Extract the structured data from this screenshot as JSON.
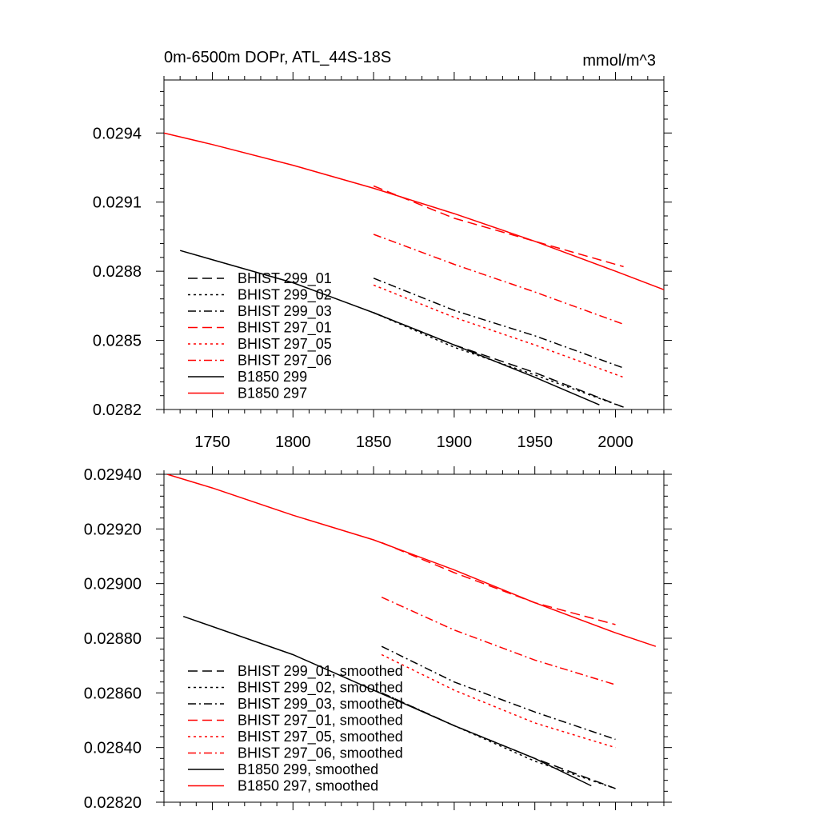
{
  "chart_data": [
    {
      "type": "line",
      "title": "0m-6500m DOPr, ATL_44S-18S",
      "units": "mmol/m^3",
      "xlabel": "",
      "ylabel": "",
      "xlim": [
        1720,
        2030
      ],
      "ylim": [
        0.0282,
        0.02963
      ],
      "xticks": [
        1750,
        1800,
        1850,
        1900,
        1950,
        2000
      ],
      "xtick_labels": [
        "1750",
        "1800",
        "1850",
        "1900",
        "1950",
        "2000"
      ],
      "yticks": [
        0.0282,
        0.0285,
        0.0288,
        0.0291,
        0.0294
      ],
      "ytick_labels": [
        "0.0282",
        "0.0285",
        "0.0288",
        "0.0291",
        "0.0294"
      ],
      "legend_position": "lower-left",
      "series": [
        {
          "name": "BHIST 299_01",
          "color": "#000000",
          "dash": "longdash",
          "x": [
            1850,
            1900,
            1950,
            2005
          ],
          "y": [
            0.02862,
            0.02848,
            0.02836,
            0.02821
          ]
        },
        {
          "name": "BHIST 299_02",
          "color": "#000000",
          "dash": "dot",
          "x": [
            1850,
            1900,
            1950,
            2005
          ],
          "y": [
            0.02862,
            0.02847,
            0.02835,
            0.02821
          ]
        },
        {
          "name": "BHIST 299_03",
          "color": "#000000",
          "dash": "dashdot",
          "x": [
            1850,
            1900,
            1950,
            2005
          ],
          "y": [
            0.02877,
            0.02863,
            0.02852,
            0.02838
          ]
        },
        {
          "name": "BHIST 297_01",
          "color": "#ff0000",
          "dash": "longdash",
          "x": [
            1850,
            1900,
            1950,
            2005
          ],
          "y": [
            0.02917,
            0.02903,
            0.02893,
            0.02882
          ]
        },
        {
          "name": "BHIST 297_05",
          "color": "#ff0000",
          "dash": "dot",
          "x": [
            1850,
            1900,
            1950,
            2005
          ],
          "y": [
            0.02874,
            0.0286,
            0.02848,
            0.02834
          ]
        },
        {
          "name": "BHIST 297_06",
          "color": "#ff0000",
          "dash": "dashdot",
          "x": [
            1850,
            1900,
            1950,
            2005
          ],
          "y": [
            0.02896,
            0.02883,
            0.02871,
            0.02857
          ]
        },
        {
          "name": "B1850 299",
          "color": "#000000",
          "dash": "solid",
          "x": [
            1730,
            1800,
            1850,
            1900,
            1950,
            1990
          ],
          "y": [
            0.02889,
            0.02875,
            0.02862,
            0.02848,
            0.02834,
            0.02822
          ]
        },
        {
          "name": "B1850 297",
          "color": "#ff0000",
          "dash": "solid",
          "x": [
            1720,
            1750,
            1800,
            1850,
            1900,
            1950,
            2000,
            2030
          ],
          "y": [
            0.0294,
            0.02935,
            0.02926,
            0.02916,
            0.02905,
            0.02893,
            0.0288,
            0.02872
          ]
        }
      ]
    },
    {
      "type": "line",
      "title": "",
      "xlabel": "",
      "ylabel": "",
      "xlim": [
        1720,
        2030
      ],
      "ylim": [
        0.0282,
        0.0294
      ],
      "xticks": [
        1750,
        1800,
        1850,
        1900,
        1950,
        2000
      ],
      "yticks": [
        0.0282,
        0.0284,
        0.0286,
        0.0288,
        0.029,
        0.0292,
        0.0294
      ],
      "ytick_labels": [
        "0.02820",
        "0.02840",
        "0.02860",
        "0.02880",
        "0.02900",
        "0.02920",
        "0.02940"
      ],
      "legend_position": "lower-left",
      "series": [
        {
          "name": "BHIST 299_01, smoothed",
          "color": "#000000",
          "dash": "longdash",
          "x": [
            1855,
            1900,
            1950,
            2000
          ],
          "y": [
            0.0286,
            0.02848,
            0.02836,
            0.02825
          ]
        },
        {
          "name": "BHIST 299_02, smoothed",
          "color": "#000000",
          "dash": "dot",
          "x": [
            1855,
            1900,
            1950,
            2000
          ],
          "y": [
            0.0286,
            0.02848,
            0.02835,
            0.02825
          ]
        },
        {
          "name": "BHIST 299_03, smoothed",
          "color": "#000000",
          "dash": "dashdot",
          "x": [
            1855,
            1900,
            1950,
            2000
          ],
          "y": [
            0.02877,
            0.02864,
            0.02853,
            0.02843
          ]
        },
        {
          "name": "BHIST 297_01, smoothed",
          "color": "#ff0000",
          "dash": "longdash",
          "x": [
            1855,
            1900,
            1950,
            2000
          ],
          "y": [
            0.02915,
            0.02904,
            0.02893,
            0.02885
          ]
        },
        {
          "name": "BHIST 297_05, smoothed",
          "color": "#ff0000",
          "dash": "dot",
          "x": [
            1855,
            1900,
            1950,
            2000
          ],
          "y": [
            0.02874,
            0.02861,
            0.02849,
            0.0284
          ]
        },
        {
          "name": "BHIST 297_06, smoothed",
          "color": "#ff0000",
          "dash": "dashdot",
          "x": [
            1855,
            1900,
            1950,
            2000
          ],
          "y": [
            0.02895,
            0.02883,
            0.02872,
            0.02863
          ]
        },
        {
          "name": "B1850 299, smoothed",
          "color": "#000000",
          "dash": "solid",
          "x": [
            1732,
            1800,
            1850,
            1900,
            1950,
            1985
          ],
          "y": [
            0.02888,
            0.02874,
            0.02861,
            0.02848,
            0.02836,
            0.02826
          ]
        },
        {
          "name": "B1850 297, smoothed",
          "color": "#ff0000",
          "dash": "solid",
          "x": [
            1722,
            1750,
            1800,
            1850,
            1900,
            1950,
            2000,
            2025
          ],
          "y": [
            0.0294,
            0.02935,
            0.02925,
            0.02916,
            0.02905,
            0.02893,
            0.02882,
            0.02877
          ]
        }
      ]
    }
  ]
}
